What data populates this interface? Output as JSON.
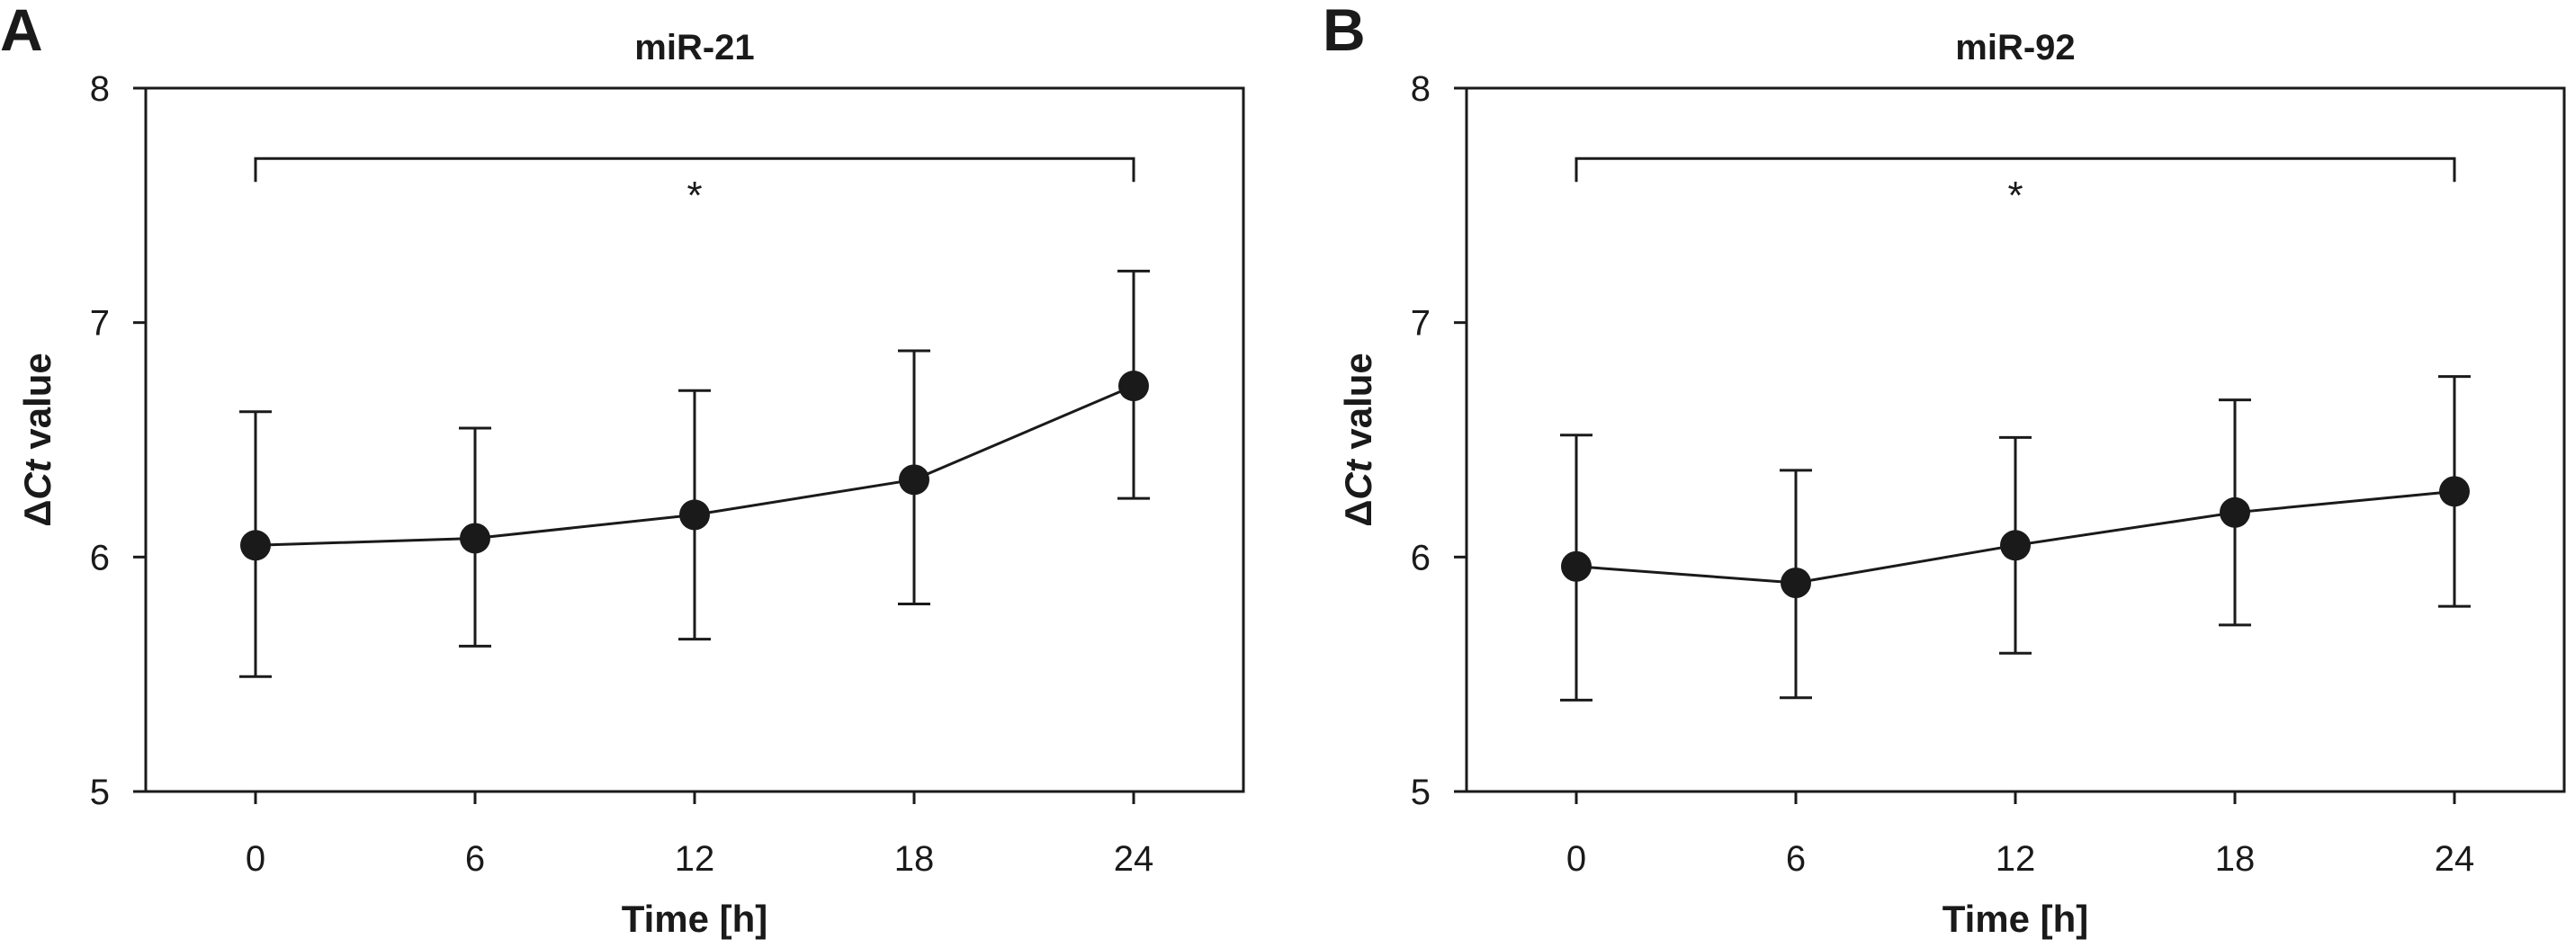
{
  "style": {
    "ink": "#1a1a1a",
    "background": "#ffffff"
  },
  "chart_data": [
    {
      "panel_label": "A",
      "type": "line",
      "title": "miR-21",
      "xlabel": "Time [h]",
      "ylabel_symbol": "Δ",
      "ylabel_italic": "Ct",
      "ylabel_rest": " value",
      "x": [
        0,
        6,
        12,
        18,
        24
      ],
      "xticks": [
        "0",
        "6",
        "12",
        "18",
        "24"
      ],
      "yticks": [
        "5",
        "6",
        "7",
        "8"
      ],
      "xlim": [
        -3,
        27
      ],
      "ylim": [
        5,
        8
      ],
      "series": [
        {
          "values": [
            6.05,
            6.08,
            6.18,
            6.33,
            6.73
          ],
          "error_upper": [
            6.62,
            6.55,
            6.71,
            6.88,
            7.22
          ],
          "error_lower": [
            5.49,
            5.62,
            5.65,
            5.8,
            6.25
          ]
        }
      ],
      "significance": {
        "from_x": 0,
        "to_x": 24,
        "y": 7.7,
        "label": "*"
      }
    },
    {
      "panel_label": "B",
      "type": "line",
      "title": "miR-92",
      "xlabel": "Time [h]",
      "ylabel_symbol": "Δ",
      "ylabel_italic": "Ct",
      "ylabel_rest": " value",
      "x": [
        0,
        6,
        12,
        18,
        24
      ],
      "xticks": [
        "0",
        "6",
        "12",
        "18",
        "24"
      ],
      "yticks": [
        "5",
        "6",
        "7",
        "8"
      ],
      "xlim": [
        -3,
        27
      ],
      "ylim": [
        5,
        8
      ],
      "series": [
        {
          "values": [
            5.96,
            5.89,
            6.05,
            6.19,
            6.28
          ],
          "error_upper": [
            6.52,
            6.37,
            6.51,
            6.67,
            6.77
          ],
          "error_lower": [
            5.39,
            5.4,
            5.59,
            5.71,
            5.79
          ]
        }
      ],
      "significance": {
        "from_x": 0,
        "to_x": 24,
        "y": 7.7,
        "label": "*"
      }
    }
  ]
}
